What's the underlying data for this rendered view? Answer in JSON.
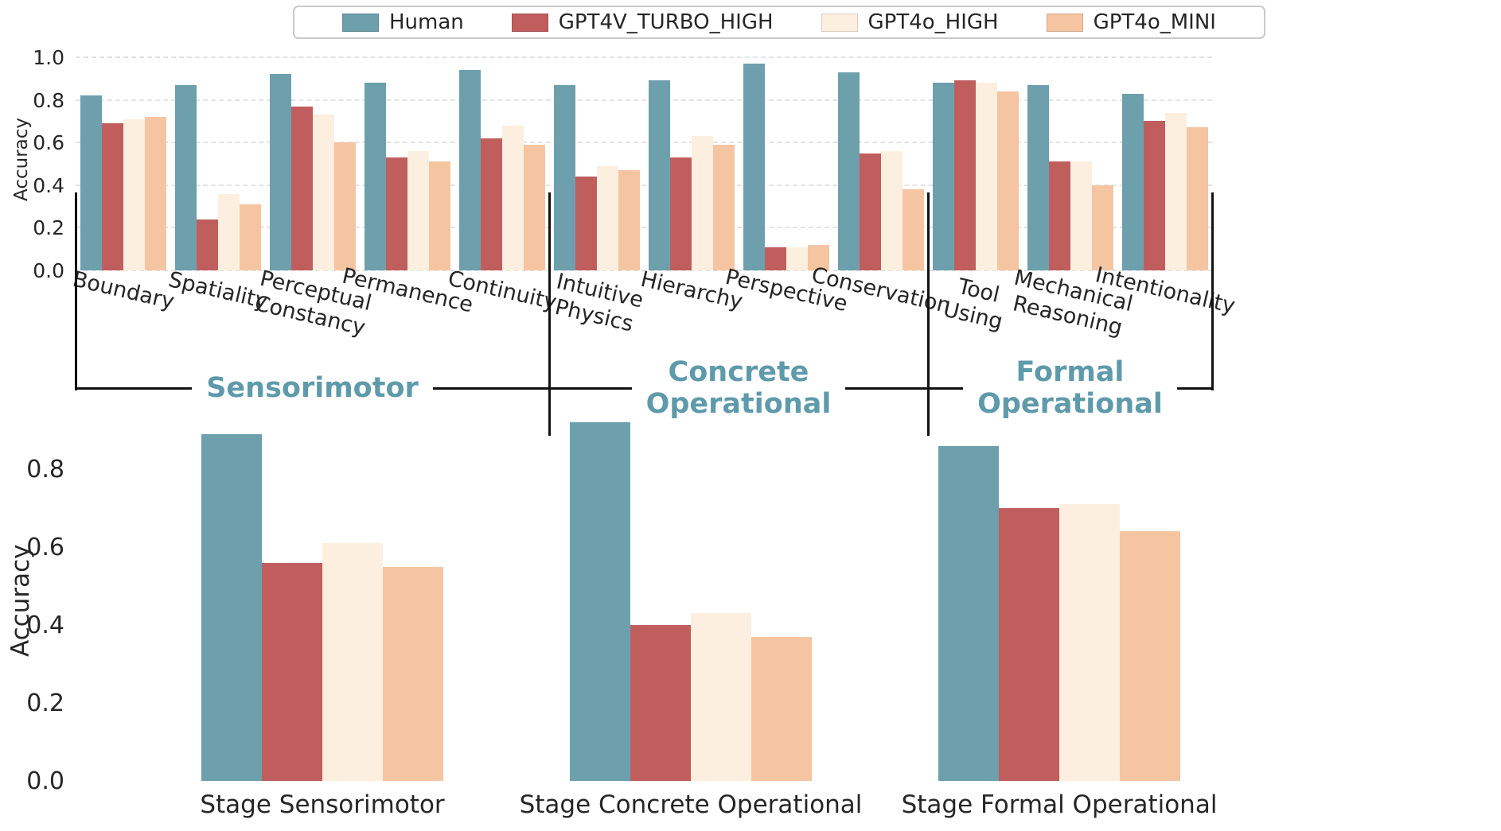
{
  "legend": {
    "items": [
      {
        "label": "Human",
        "color": "#6da0ac"
      },
      {
        "label": "GPT4V_TURBO_HIGH",
        "color": "#c05e5e"
      },
      {
        "label": "GPT4o_HIGH",
        "color": "#fcefdf"
      },
      {
        "label": "GPT4o_MINI",
        "color": "#f5c5a2"
      }
    ]
  },
  "stage_label_color": "#5f9aab",
  "stages": [
    {
      "label": "Sensorimotor",
      "category_span": [
        0,
        4
      ]
    },
    {
      "label": "Concrete\nOperational",
      "category_span": [
        5,
        8
      ]
    },
    {
      "label": "Formal\nOperational",
      "category_span": [
        9,
        11
      ]
    }
  ],
  "chart_data": [
    {
      "id": "accuracy-by-concept",
      "type": "bar",
      "title": "",
      "ylabel": "Accuracy",
      "ylim": [
        0,
        1.05
      ],
      "yticks": [
        0.0,
        0.2,
        0.4,
        0.6,
        0.8,
        1.0
      ],
      "grid": true,
      "legend_position": "top-center",
      "categories": [
        "Boundary",
        "Spatiality",
        "Perceptual\nConstancy",
        "Permanence",
        "Continuity",
        "Intuitive\nPhysics",
        "Hierarchy",
        "Perspective",
        "Conservation",
        "Tool\nUsing",
        "Mechanical\nReasoning",
        "Intentionality"
      ],
      "series": [
        {
          "name": "Human",
          "values": [
            0.82,
            0.87,
            0.92,
            0.88,
            0.94,
            0.87,
            0.89,
            0.97,
            0.93,
            0.88,
            0.87,
            0.83
          ]
        },
        {
          "name": "GPT4V_TURBO_HIGH",
          "values": [
            0.69,
            0.24,
            0.77,
            0.53,
            0.62,
            0.44,
            0.53,
            0.11,
            0.55,
            0.89,
            0.51,
            0.7
          ]
        },
        {
          "name": "GPT4o_HIGH",
          "values": [
            0.71,
            0.36,
            0.73,
            0.56,
            0.68,
            0.49,
            0.63,
            0.11,
            0.56,
            0.88,
            0.51,
            0.74
          ]
        },
        {
          "name": "GPT4o_MINI",
          "values": [
            0.72,
            0.31,
            0.6,
            0.51,
            0.59,
            0.47,
            0.59,
            0.12,
            0.38,
            0.84,
            0.4,
            0.67
          ]
        }
      ]
    },
    {
      "id": "accuracy-by-stage",
      "type": "bar",
      "title": "",
      "ylabel": "Accuracy",
      "ylim": [
        0,
        0.93
      ],
      "yticks": [
        0.0,
        0.2,
        0.4,
        0.6,
        0.8
      ],
      "grid": false,
      "categories": [
        "Stage Sensorimotor",
        "Stage Concrete Operational",
        "Stage Formal Operational"
      ],
      "series": [
        {
          "name": "Human",
          "values": [
            0.89,
            0.92,
            0.86
          ]
        },
        {
          "name": "GPT4V_TURBO_HIGH",
          "values": [
            0.56,
            0.4,
            0.7
          ]
        },
        {
          "name": "GPT4o_HIGH",
          "values": [
            0.61,
            0.43,
            0.71
          ]
        },
        {
          "name": "GPT4o_MINI",
          "values": [
            0.55,
            0.37,
            0.64
          ]
        }
      ]
    }
  ]
}
